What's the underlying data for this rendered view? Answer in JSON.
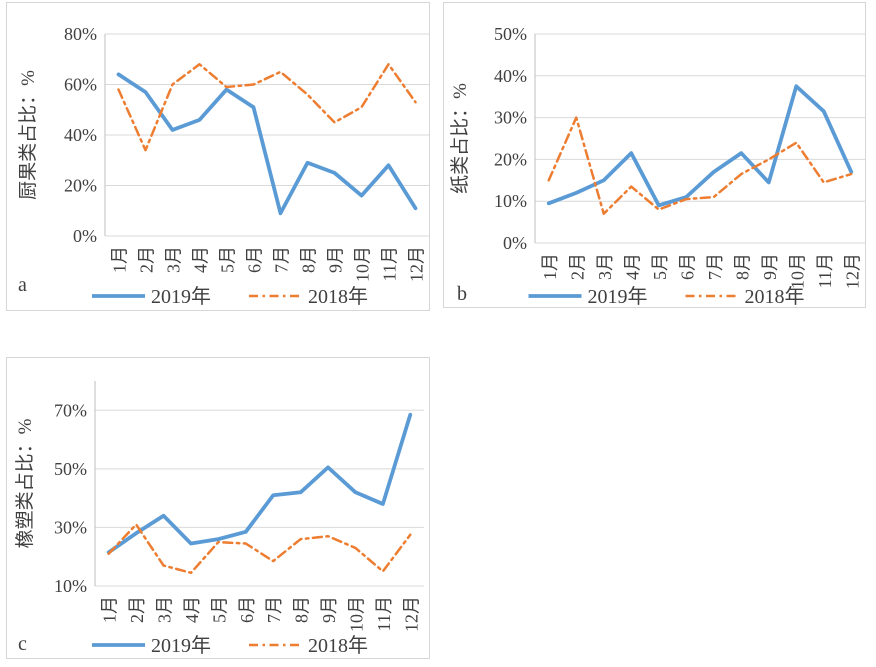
{
  "panels": [
    {
      "label": "a"
    },
    {
      "label": "b"
    },
    {
      "label": "c"
    }
  ],
  "colors": {
    "series_2019": "#5B9BD5",
    "series_2018": "#ED7D31",
    "gridline": "#D9D9D9",
    "axis_line": "#BFBFBF",
    "text": "#404040",
    "panel_border": "#D6D6D6"
  },
  "chart_data": [
    {
      "type": "line",
      "panel_label": "a",
      "title": "",
      "ylabel": "厨果类占比：%",
      "xlabel": "",
      "grid": true,
      "legend_position": "bottom",
      "ylim": [
        0,
        80
      ],
      "yticks": [
        0,
        20,
        40,
        60,
        80
      ],
      "ytick_suffix": "%",
      "categories": [
        "1月",
        "2月",
        "3月",
        "4月",
        "5月",
        "6月",
        "7月",
        "8月",
        "9月",
        "10月",
        "11月",
        "12月"
      ],
      "series": [
        {
          "name": "2019年",
          "style": "solid",
          "color": "#5B9BD5",
          "values": [
            64,
            57,
            42,
            46,
            58,
            51,
            9,
            29,
            25,
            16,
            28,
            11
          ]
        },
        {
          "name": "2018年",
          "style": "dash-dot",
          "color": "#ED7D31",
          "values": [
            58,
            34,
            60,
            68,
            59,
            60,
            65,
            56,
            45,
            51,
            68,
            53
          ]
        }
      ]
    },
    {
      "type": "line",
      "panel_label": "b",
      "title": "",
      "ylabel": "纸类占比：%",
      "xlabel": "",
      "grid": true,
      "legend_position": "bottom",
      "ylim": [
        0,
        50
      ],
      "yticks": [
        0,
        10,
        20,
        30,
        40,
        50
      ],
      "ytick_suffix": "%",
      "categories": [
        "1月",
        "2月",
        "3月",
        "4月",
        "5月",
        "6月",
        "7月",
        "8月",
        "9月",
        "10月",
        "11月",
        "12月"
      ],
      "series": [
        {
          "name": "2019年",
          "style": "solid",
          "color": "#5B9BD5",
          "values": [
            9.5,
            12,
            15,
            21.5,
            9,
            11,
            17,
            21.5,
            14.5,
            37.5,
            31.5,
            17
          ]
        },
        {
          "name": "2018年",
          "style": "dash-dot",
          "color": "#ED7D31",
          "values": [
            15,
            30,
            7,
            13.5,
            8,
            10.5,
            11,
            16.5,
            20,
            24,
            14.5,
            16.5
          ]
        }
      ]
    },
    {
      "type": "line",
      "panel_label": "c",
      "title": "",
      "ylabel": "橡塑类占比：%",
      "xlabel": "",
      "grid": true,
      "legend_position": "bottom",
      "ylim": [
        10,
        80
      ],
      "yticks": [
        10,
        30,
        50,
        70
      ],
      "ytick_suffix": "%",
      "categories": [
        "1月",
        "2月",
        "3月",
        "4月",
        "5月",
        "6月",
        "7月",
        "8月",
        "9月",
        "10月",
        "11月",
        "12月"
      ],
      "series": [
        {
          "name": "2019年",
          "style": "solid",
          "color": "#5B9BD5",
          "values": [
            21.5,
            28,
            34,
            24.5,
            26,
            28.5,
            41,
            42,
            50.5,
            42,
            38,
            68.5
          ]
        },
        {
          "name": "2018年",
          "style": "dash-dot",
          "color": "#ED7D31",
          "values": [
            21,
            31,
            17,
            14.5,
            25,
            24.5,
            18.5,
            26,
            27,
            23,
            15,
            27.5
          ]
        }
      ]
    }
  ]
}
